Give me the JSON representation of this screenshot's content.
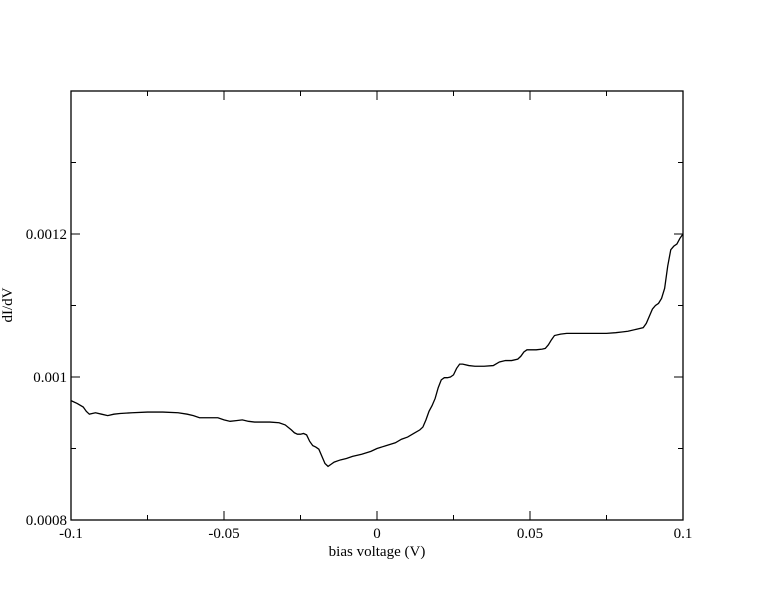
{
  "chart_data": {
    "type": "line",
    "xlabel": "bias voltage (V)",
    "ylabel": "dI/dV",
    "xlim": [
      -0.1,
      0.1
    ],
    "ylim": [
      0.0008,
      0.0014
    ],
    "xticks": [
      -0.1,
      -0.05,
      0,
      0.05,
      0.1
    ],
    "xtick_labels": [
      "-0.1",
      "-0.05",
      "0",
      "0.05",
      "0.1"
    ],
    "yticks": [
      0.0008,
      0.001,
      0.0012
    ],
    "ytick_labels": [
      "0.0008",
      "0.001",
      "0.0012"
    ],
    "grid": false,
    "series": [
      {
        "color": "#000000",
        "x": [
          -0.1,
          -0.098,
          -0.096,
          -0.095,
          -0.094,
          -0.092,
          -0.09,
          -0.088,
          -0.086,
          -0.084,
          -0.08,
          -0.075,
          -0.07,
          -0.065,
          -0.062,
          -0.06,
          -0.058,
          -0.055,
          -0.052,
          -0.05,
          -0.048,
          -0.046,
          -0.044,
          -0.042,
          -0.04,
          -0.038,
          -0.035,
          -0.032,
          -0.03,
          -0.028,
          -0.027,
          -0.026,
          -0.025,
          -0.024,
          -0.023,
          -0.022,
          -0.021,
          -0.02,
          -0.019,
          -0.018,
          -0.017,
          -0.016,
          -0.015,
          -0.014,
          -0.012,
          -0.01,
          -0.008,
          -0.005,
          -0.002,
          0,
          0.003,
          0.006,
          0.008,
          0.01,
          0.012,
          0.014,
          0.015,
          0.016,
          0.017,
          0.018,
          0.019,
          0.02,
          0.021,
          0.022,
          0.023,
          0.024,
          0.025,
          0.026,
          0.027,
          0.028,
          0.03,
          0.032,
          0.035,
          0.038,
          0.04,
          0.042,
          0.044,
          0.046,
          0.047,
          0.048,
          0.049,
          0.05,
          0.052,
          0.054,
          0.055,
          0.056,
          0.057,
          0.058,
          0.06,
          0.062,
          0.065,
          0.07,
          0.075,
          0.078,
          0.08,
          0.082,
          0.085,
          0.087,
          0.088,
          0.089,
          0.09,
          0.091,
          0.092,
          0.093,
          0.094,
          0.095,
          0.096,
          0.097,
          0.098,
          0.099,
          0.1
        ],
        "y": [
          0.000967,
          0.000963,
          0.000958,
          0.000952,
          0.000948,
          0.00095,
          0.000948,
          0.000946,
          0.000948,
          0.000949,
          0.00095,
          0.000951,
          0.000951,
          0.00095,
          0.000948,
          0.000946,
          0.000943,
          0.000943,
          0.000943,
          0.00094,
          0.000938,
          0.000939,
          0.00094,
          0.000938,
          0.000937,
          0.000937,
          0.000937,
          0.000936,
          0.000933,
          0.000926,
          0.000922,
          0.00092,
          0.00092,
          0.000921,
          0.000919,
          0.00091,
          0.000904,
          0.000902,
          0.000899,
          0.000889,
          0.000879,
          0.000875,
          0.000878,
          0.000881,
          0.000884,
          0.000886,
          0.000889,
          0.000892,
          0.000896,
          0.0009,
          0.000904,
          0.000908,
          0.000913,
          0.000916,
          0.000921,
          0.000926,
          0.00093,
          0.00094,
          0.000952,
          0.00096,
          0.00097,
          0.000985,
          0.000996,
          0.000999,
          0.000999,
          0.001,
          0.001003,
          0.001012,
          0.001018,
          0.001018,
          0.001016,
          0.001015,
          0.001015,
          0.001016,
          0.001021,
          0.001023,
          0.001023,
          0.001025,
          0.001029,
          0.001035,
          0.001038,
          0.001038,
          0.001038,
          0.001039,
          0.00104,
          0.001045,
          0.001052,
          0.001058,
          0.00106,
          0.001061,
          0.001061,
          0.001061,
          0.001061,
          0.001062,
          0.001063,
          0.001064,
          0.001067,
          0.001069,
          0.001075,
          0.001085,
          0.001095,
          0.0011,
          0.001103,
          0.00111,
          0.001124,
          0.001155,
          0.001178,
          0.001183,
          0.001186,
          0.001194,
          0.0012
        ]
      }
    ]
  }
}
